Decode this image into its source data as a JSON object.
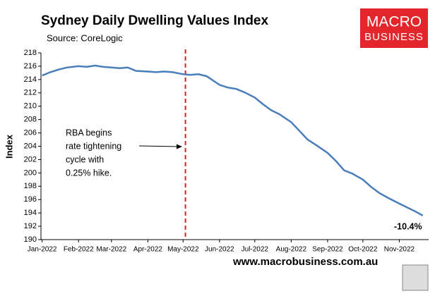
{
  "chart_data": {
    "type": "line",
    "title": "Sydney Daily Dwelling Values Index",
    "subtitle": "Source: CoreLogic",
    "y_label": "Index",
    "x": [
      0,
      7,
      14,
      21,
      31,
      38,
      45,
      52,
      59,
      66,
      73,
      80,
      90,
      97,
      104,
      111,
      120,
      126,
      133,
      140,
      151,
      158,
      165,
      172,
      181,
      188,
      195,
      202,
      212,
      219,
      226,
      233,
      243,
      250,
      257,
      264,
      273,
      280,
      287,
      294,
      304,
      311,
      318,
      324
    ],
    "series": [
      {
        "name": "Sydney",
        "color": "#4a7ebb",
        "values": [
          214.6,
          215.1,
          215.5,
          215.8,
          216.0,
          215.9,
          216.1,
          215.9,
          215.8,
          215.7,
          215.8,
          215.3,
          215.2,
          215.1,
          215.2,
          215.1,
          214.8,
          214.7,
          214.8,
          214.5,
          213.2,
          212.8,
          212.6,
          212.1,
          211.3,
          210.3,
          209.4,
          208.8,
          207.6,
          206.3,
          205.0,
          204.2,
          203.0,
          201.8,
          200.4,
          199.9,
          199.0,
          197.9,
          197.0,
          196.3,
          195.4,
          194.8,
          194.2,
          193.6
        ]
      }
    ],
    "xlim": [
      -1,
      329
    ],
    "xticks": [
      {
        "value": 0,
        "label": "Jan-2022"
      },
      {
        "value": 31,
        "label": "Feb-2022"
      },
      {
        "value": 59,
        "label": "Mar-2022"
      },
      {
        "value": 90,
        "label": "Apr-2022"
      },
      {
        "value": 120,
        "label": "May-2022"
      },
      {
        "value": 151,
        "label": "Jun-2022"
      },
      {
        "value": 181,
        "label": "Jul-2022"
      },
      {
        "value": 212,
        "label": "Aug-2022"
      },
      {
        "value": 243,
        "label": "Sep-2022"
      },
      {
        "value": 273,
        "label": "Oct-2022"
      },
      {
        "value": 304,
        "label": "Nov-2022"
      }
    ],
    "ylim": [
      190,
      218
    ],
    "yticks": [
      190,
      192,
      194,
      196,
      198,
      200,
      202,
      204,
      206,
      208,
      210,
      212,
      214,
      216,
      218
    ],
    "grid": false,
    "event_x": 122,
    "event_color": "#e0201b",
    "annotation": [
      "RBA begins",
      "rate tightening",
      "cycle with",
      "0.25% hike."
    ],
    "end_label": "-10.4%",
    "logo": [
      "MACRO",
      "BUSINESS"
    ],
    "footer": "www.macrobusiness.com.au"
  }
}
